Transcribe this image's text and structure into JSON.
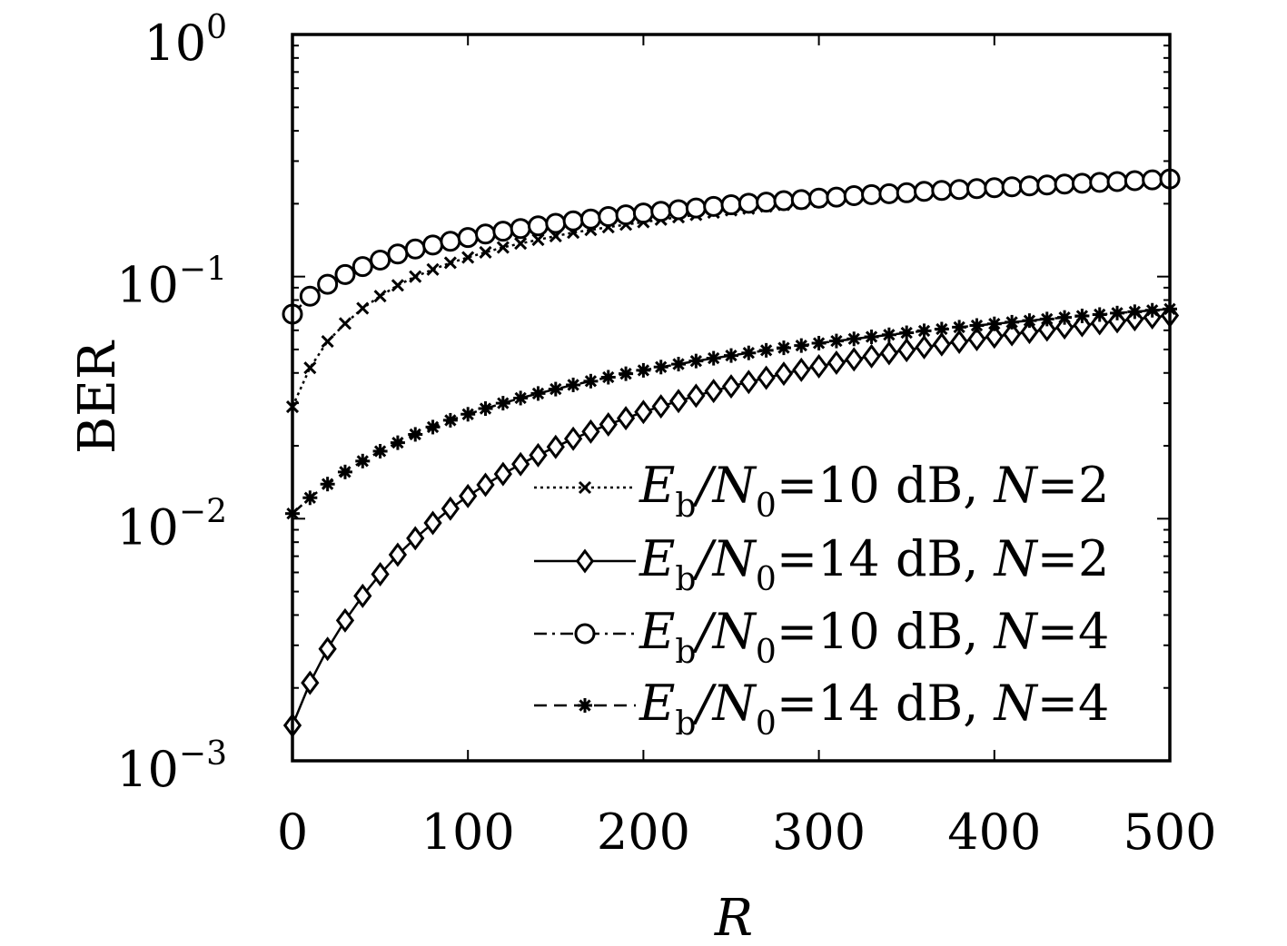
{
  "chart_data": {
    "type": "line",
    "xlabel": "R",
    "ylabel": "BER",
    "xlim": [
      0,
      500
    ],
    "ylim": [
      0.001,
      1
    ],
    "yscale": "log",
    "grid": false,
    "legend_position": "bottom-right",
    "xticks": [
      "0",
      "100",
      "200",
      "300",
      "400",
      "500"
    ],
    "yticks": [
      {
        "base": "10",
        "exp": "0"
      },
      {
        "base": "10",
        "exp": "−1"
      },
      {
        "base": "10",
        "exp": "−2"
      },
      {
        "base": "10",
        "exp": "−3"
      }
    ],
    "x": [
      0,
      10,
      20,
      30,
      40,
      50,
      60,
      70,
      80,
      90,
      100,
      110,
      120,
      130,
      140,
      150,
      160,
      170,
      180,
      190,
      200,
      210,
      220,
      230,
      240,
      250,
      260,
      270,
      280,
      290,
      300,
      310,
      320,
      330,
      340,
      350,
      360,
      370,
      380,
      390,
      400,
      410,
      420,
      430,
      440,
      450,
      460,
      470,
      480,
      490,
      500
    ],
    "series": [
      {
        "id": "s1",
        "legend": {
          "lead": "E",
          "sub1": "b",
          "mid": "/N",
          "sub2": "0",
          "tail": "=10 dB, ",
          "n_var": "N",
          "n_val": "=2"
        },
        "line_style": "dotted",
        "marker": "x",
        "values": [
          0.029,
          0.042,
          0.054,
          0.064,
          0.074,
          0.083,
          0.092,
          0.1,
          0.107,
          0.114,
          0.12,
          0.126,
          0.132,
          0.137,
          0.142,
          0.147,
          0.152,
          0.156,
          0.16,
          0.164,
          0.168,
          0.172,
          0.176,
          0.18,
          0.184,
          0.188,
          0.191,
          0.195,
          0.198,
          0.201,
          0.204,
          0.208,
          0.211,
          0.214,
          0.217,
          0.22,
          0.223,
          0.226,
          0.229,
          0.232,
          0.235,
          0.238,
          0.24,
          0.243,
          0.245,
          0.248,
          0.25,
          0.252,
          0.255,
          0.257,
          0.259
        ]
      },
      {
        "id": "s2",
        "legend": {
          "lead": "E",
          "sub1": "b",
          "mid": "/N",
          "sub2": "0",
          "tail": "=14 dB, ",
          "n_var": "N",
          "n_val": "=2"
        },
        "line_style": "solid",
        "marker": "diamond",
        "values": [
          0.0014,
          0.0021,
          0.0029,
          0.0038,
          0.0048,
          0.0059,
          0.0071,
          0.0083,
          0.0096,
          0.011,
          0.0124,
          0.0138,
          0.0153,
          0.0168,
          0.0183,
          0.0198,
          0.0214,
          0.0229,
          0.0245,
          0.026,
          0.0276,
          0.0291,
          0.0306,
          0.0322,
          0.0337,
          0.0352,
          0.0367,
          0.0382,
          0.0397,
          0.0412,
          0.0426,
          0.0441,
          0.0455,
          0.0469,
          0.0483,
          0.0497,
          0.0511,
          0.0525,
          0.0538,
          0.0552,
          0.0565,
          0.0578,
          0.0591,
          0.0604,
          0.0617,
          0.063,
          0.0642,
          0.0654,
          0.0667,
          0.0679,
          0.0691
        ]
      },
      {
        "id": "s3",
        "legend": {
          "lead": "E",
          "sub1": "b",
          "mid": "/N",
          "sub2": "0",
          "tail": "=10 dB, ",
          "n_var": "N",
          "n_val": "=4"
        },
        "line_style": "dashdot",
        "marker": "circle",
        "values": [
          0.07,
          0.083,
          0.093,
          0.102,
          0.11,
          0.117,
          0.124,
          0.13,
          0.135,
          0.14,
          0.145,
          0.15,
          0.154,
          0.158,
          0.162,
          0.166,
          0.17,
          0.173,
          0.177,
          0.18,
          0.183,
          0.186,
          0.189,
          0.192,
          0.195,
          0.198,
          0.201,
          0.203,
          0.206,
          0.208,
          0.211,
          0.213,
          0.216,
          0.218,
          0.22,
          0.222,
          0.225,
          0.227,
          0.229,
          0.231,
          0.233,
          0.235,
          0.237,
          0.239,
          0.241,
          0.243,
          0.245,
          0.247,
          0.249,
          0.251,
          0.253
        ]
      },
      {
        "id": "s4",
        "legend": {
          "lead": "E",
          "sub1": "b",
          "mid": "/N",
          "sub2": "0",
          "tail": "=14 dB, ",
          "n_var": "N",
          "n_val": "=4"
        },
        "line_style": "dashed",
        "marker": "star",
        "values": [
          0.0105,
          0.0122,
          0.0139,
          0.0156,
          0.0173,
          0.019,
          0.0206,
          0.0223,
          0.0239,
          0.0255,
          0.027,
          0.0285,
          0.03,
          0.0315,
          0.0329,
          0.0343,
          0.0357,
          0.037,
          0.0384,
          0.0397,
          0.041,
          0.0423,
          0.0435,
          0.0448,
          0.046,
          0.0472,
          0.0484,
          0.0496,
          0.0508,
          0.0519,
          0.0531,
          0.0542,
          0.0553,
          0.0564,
          0.0575,
          0.0586,
          0.0597,
          0.0607,
          0.0618,
          0.0628,
          0.0638,
          0.0648,
          0.0658,
          0.0668,
          0.0678,
          0.0688,
          0.0697,
          0.0707,
          0.0716,
          0.0726,
          0.0735
        ]
      }
    ]
  }
}
